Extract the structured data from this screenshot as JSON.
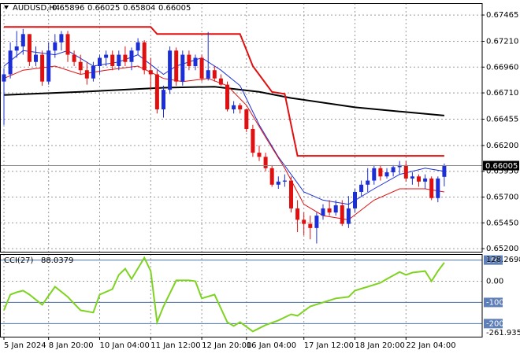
{
  "chart_data": [
    {
      "type": "candlestick",
      "title": "AUDUSD,H4",
      "categories": [
        "5 Jan 2024",
        null,
        null,
        null,
        null,
        null,
        null,
        "8 Jan 20:00",
        null,
        null,
        null,
        null,
        null,
        null,
        null,
        "10 Jan 04:00",
        null,
        null,
        null,
        null,
        null,
        null,
        null,
        "11 Jan 12:00",
        null,
        null,
        null,
        null,
        null,
        null,
        null,
        "12 Jan 20:00",
        null,
        null,
        null,
        null,
        null,
        null,
        "16 Jan 04:00",
        null,
        null,
        null,
        null,
        null,
        null,
        null,
        null,
        "17 Jan 12:00",
        null,
        null,
        null,
        null,
        null,
        null,
        null,
        "18 Jan 20:00",
        null,
        null,
        null,
        null,
        null,
        null,
        null,
        "22 Jan 04:00",
        null,
        null,
        null,
        null,
        null,
        null
      ],
      "open": [
        0.6682,
        0.6689,
        0.6712,
        0.6716,
        0.6728,
        0.6701,
        0.6708,
        0.6682,
        0.6712,
        0.672,
        0.6728,
        0.6708,
        0.6701,
        0.6693,
        0.6685,
        0.6697,
        0.6705,
        0.6708,
        0.6697,
        0.6708,
        0.6701,
        0.6712,
        0.672,
        0.6693,
        0.6689,
        0.6655,
        0.6674,
        0.6712,
        0.6682,
        0.6708,
        0.6697,
        0.6705,
        0.6685,
        0.6693,
        0.6685,
        0.6679,
        0.6655,
        0.6659,
        0.6655,
        0.6636,
        0.6613,
        0.6609,
        0.6598,
        0.6582,
        0.6585,
        0.6586,
        0.6559,
        0.6548,
        0.6544,
        0.654,
        0.6552,
        0.6559,
        0.6555,
        0.6562,
        0.6544,
        0.6559,
        0.6575,
        0.6582,
        0.6586,
        0.6598,
        0.659,
        0.6594,
        0.6599,
        0.6601,
        0.6588,
        0.659,
        0.6585,
        0.6588,
        0.6569,
        0.65896
      ],
      "high": [
        0.6695,
        0.672,
        0.6731,
        0.6733,
        0.6728,
        0.6716,
        0.6712,
        0.672,
        0.6728,
        0.6731,
        0.6731,
        0.6712,
        0.6708,
        0.6701,
        0.6701,
        0.6708,
        0.6712,
        0.6712,
        0.6712,
        0.6716,
        0.6715,
        0.6724,
        0.6722,
        0.6705,
        0.6693,
        0.6678,
        0.6716,
        0.6715,
        0.6712,
        0.6712,
        0.6708,
        0.6708,
        0.673,
        0.6697,
        0.6689,
        0.6682,
        0.6663,
        0.6661,
        0.6656,
        0.664,
        0.662,
        0.6613,
        0.6601,
        0.659,
        0.6592,
        0.659,
        0.6567,
        0.6555,
        0.6552,
        0.6555,
        0.6563,
        0.6567,
        0.6567,
        0.6567,
        0.6571,
        0.6578,
        0.6586,
        0.6598,
        0.6601,
        0.6601,
        0.6598,
        0.6601,
        0.6605,
        0.6605,
        0.6594,
        0.6592,
        0.6592,
        0.659,
        0.659,
        0.66025
      ],
      "low": [
        0.664,
        0.6685,
        0.6705,
        0.6708,
        0.6697,
        0.6697,
        0.6678,
        0.6679,
        0.6705,
        0.6712,
        0.6701,
        0.6697,
        0.6689,
        0.6679,
        0.6682,
        0.6689,
        0.6697,
        0.6693,
        0.6693,
        0.6697,
        0.6693,
        0.6708,
        0.6689,
        0.6674,
        0.6651,
        0.6647,
        0.667,
        0.6678,
        0.6678,
        0.6693,
        0.6693,
        0.6682,
        0.6683,
        0.6682,
        0.6678,
        0.6653,
        0.6651,
        0.6651,
        0.6633,
        0.6609,
        0.6605,
        0.6595,
        0.658,
        0.6578,
        0.658,
        0.6555,
        0.6536,
        0.6533,
        0.6529,
        0.6525,
        0.6548,
        0.6552,
        0.6552,
        0.6542,
        0.654,
        0.6555,
        0.6571,
        0.6575,
        0.6582,
        0.6586,
        0.6588,
        0.659,
        0.6592,
        0.6585,
        0.6582,
        0.658,
        0.6578,
        0.6567,
        0.6565,
        0.65804
      ],
      "close": [
        0.6689,
        0.6712,
        0.6716,
        0.6728,
        0.6701,
        0.6708,
        0.6682,
        0.6712,
        0.672,
        0.6728,
        0.6708,
        0.6701,
        0.6693,
        0.6685,
        0.6697,
        0.6705,
        0.6708,
        0.6697,
        0.6708,
        0.6701,
        0.6712,
        0.672,
        0.6693,
        0.6689,
        0.6655,
        0.6674,
        0.6712,
        0.6682,
        0.6708,
        0.6697,
        0.6705,
        0.6685,
        0.6693,
        0.6685,
        0.6679,
        0.6655,
        0.6659,
        0.6655,
        0.6636,
        0.6613,
        0.6609,
        0.6598,
        0.6582,
        0.6585,
        0.6586,
        0.6559,
        0.6548,
        0.6544,
        0.654,
        0.6552,
        0.6559,
        0.6555,
        0.6562,
        0.6544,
        0.6559,
        0.6575,
        0.6582,
        0.6586,
        0.6598,
        0.659,
        0.6594,
        0.6599,
        0.6601,
        0.6588,
        0.659,
        0.6585,
        0.6588,
        0.6569,
        0.6588,
        0.66005
      ],
      "up_color": "#1c2fd6",
      "down_color": "#e01010",
      "overlays": [
        {
          "color": "#000000",
          "width": 2,
          "x": [
            0,
            12,
            25,
            33,
            40,
            45,
            55,
            62,
            69
          ],
          "values": [
            0.6669,
            0.6672,
            0.6676,
            0.6677,
            0.6672,
            0.6666,
            0.6657,
            0.6653,
            0.6649
          ]
        },
        {
          "color": "#e01010",
          "width": 2,
          "x": [
            0,
            23,
            24,
            37,
            39,
            42,
            44,
            46,
            69
          ],
          "values": [
            0.6735,
            0.6735,
            0.6728,
            0.6728,
            0.6697,
            0.6672,
            0.667,
            0.661,
            0.661
          ]
        },
        {
          "color": "#1c2fd6",
          "width": 1,
          "x": [
            0,
            3,
            8,
            10,
            14,
            18,
            21,
            25,
            27,
            31,
            34,
            37,
            40,
            43,
            47,
            50,
            54,
            58,
            62,
            66,
            69
          ],
          "values": [
            0.6697,
            0.6712,
            0.6708,
            0.6712,
            0.6697,
            0.6701,
            0.6708,
            0.6689,
            0.6697,
            0.6705,
            0.6693,
            0.6678,
            0.664,
            0.6609,
            0.6575,
            0.6567,
            0.6563,
            0.6578,
            0.6592,
            0.6598,
            0.6595
          ]
        },
        {
          "color": "#e01010",
          "width": 1,
          "x": [
            0,
            3,
            8,
            12,
            16,
            21,
            25,
            28,
            32,
            35,
            38,
            41,
            44,
            47,
            50,
            54,
            58,
            62,
            66,
            69
          ],
          "values": [
            0.6685,
            0.6693,
            0.6697,
            0.6689,
            0.6693,
            0.6697,
            0.6685,
            0.6682,
            0.6685,
            0.6678,
            0.6659,
            0.6628,
            0.6598,
            0.6563,
            0.6552,
            0.6548,
            0.6567,
            0.6578,
            0.6578,
            0.6575
          ]
        }
      ],
      "ylim": [
        0.6517,
        0.6758
      ],
      "yticks": [
        0.67465,
        {
          "value": 0.6721,
          "label": "0.67210"
        },
        {
          "value": 0.6696,
          "label": "0.66960"
        },
        {
          "value": 0.6671,
          "label": "0.66710"
        },
        0.66455,
        {
          "value": 0.662,
          "label": "0.66200"
        },
        {
          "value": 0.6595,
          "label": "0.65950"
        },
        {
          "value": 0.657,
          "label": "0.65700"
        },
        {
          "value": 0.6545,
          "label": "0.65450"
        },
        {
          "value": 0.652,
          "label": "0.65200"
        }
      ],
      "grid": true
    },
    {
      "type": "line",
      "title": "CCI(27)",
      "color": "#7ed321",
      "x": [
        0,
        1,
        2,
        3,
        4,
        6,
        8,
        10,
        12,
        14,
        15,
        17,
        18,
        19,
        20,
        22,
        23,
        24,
        25,
        27,
        29,
        30,
        31,
        33,
        35,
        36,
        37,
        39,
        41,
        43,
        45,
        46,
        48,
        50,
        52,
        54,
        55,
        57,
        59,
        60,
        62,
        63,
        64,
        66,
        67,
        68,
        69
      ],
      "values": [
        -137,
        -63,
        -52,
        -44,
        -63,
        -111,
        -26,
        -74,
        -137,
        -148,
        -63,
        -37,
        30,
        59,
        11,
        111,
        48,
        -193,
        -119,
        4,
        4,
        0,
        -81,
        -63,
        -193,
        -211,
        -193,
        -237,
        -207,
        -185,
        -156,
        -163,
        -119,
        -100,
        -81,
        -74,
        -44,
        -26,
        -7,
        11,
        44,
        30,
        41,
        48,
        0,
        48,
        88.0379
      ],
      "ylim": [
        -261.9353,
        128.2698
      ],
      "yticks": [
        100,
        {
          "value": 0,
          "label": "0.00"
        },
        -100,
        -200
      ],
      "levels": [
        100,
        -100,
        -200
      ],
      "grid": true
    }
  ]
}
